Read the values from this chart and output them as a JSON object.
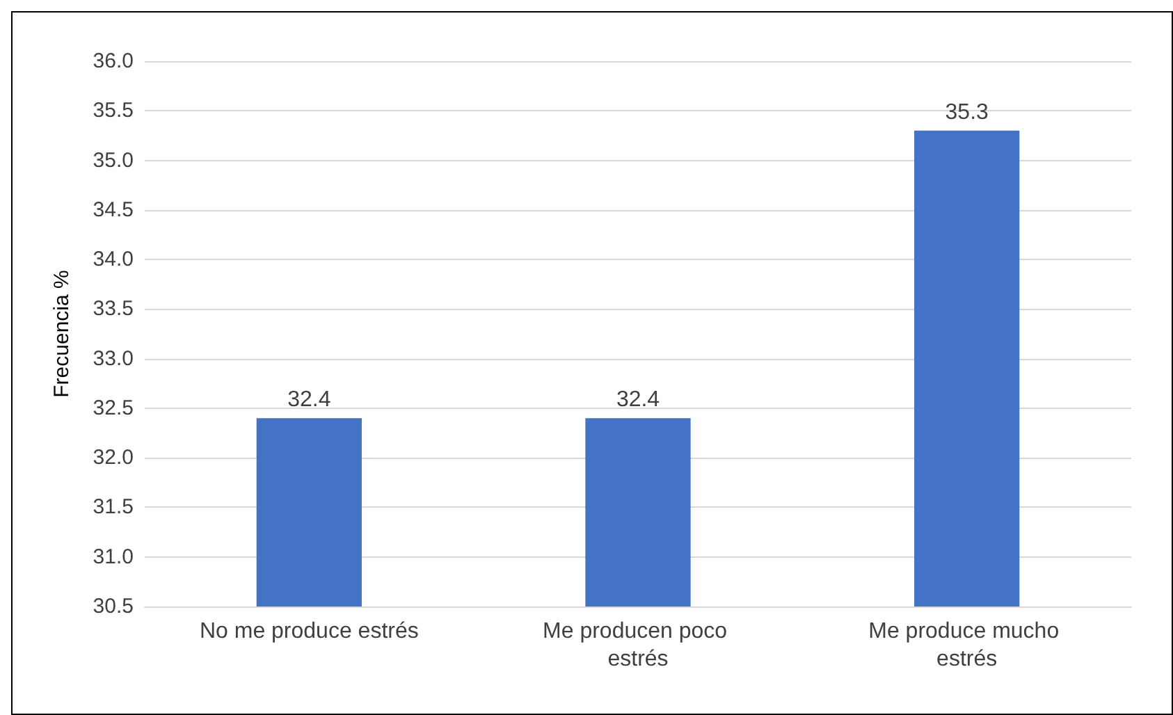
{
  "chart_data": {
    "type": "bar",
    "ylabel": "Frecuencia %",
    "categories": [
      "No me produce estrés",
      "Me producen poco estrés",
      "Me produce mucho estrés"
    ],
    "values": [
      32.4,
      32.4,
      35.3
    ],
    "color": "#4472c4",
    "data_labels": true,
    "grid": "y",
    "ylim": [
      30.5,
      36.0
    ],
    "yticks": [
      {
        "value": 30.5,
        "label": "30.5"
      },
      {
        "value": 31,
        "label": "31.0"
      },
      {
        "value": 31.5,
        "label": "31.5"
      },
      {
        "value": 32,
        "label": "32.0"
      },
      {
        "value": 32.5,
        "label": "32.5"
      },
      {
        "value": 33,
        "label": "33.0"
      },
      {
        "value": 33.5,
        "label": "33.5"
      },
      {
        "value": 34,
        "label": "34.0"
      },
      {
        "value": 34.5,
        "label": "34.5"
      },
      {
        "value": 35,
        "label": "35.0"
      },
      {
        "value": 35.5,
        "label": "35.5"
      },
      {
        "value": 36,
        "label": "36.0"
      }
    ]
  }
}
